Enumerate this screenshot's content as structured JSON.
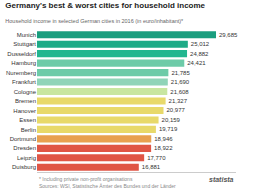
{
  "chart_data": {
    "type": "bar",
    "orientation": "horizontal",
    "title": "Germany's best & worst cities for household income",
    "subtitle": "Household income in selected German cities in 2016 (in euro/inhabitant)*",
    "annotations": [
      "* Including private non-profit organisations\nSources: WSI, Statistische Ämter des Bundes und der Länder",
      "statista"
    ],
    "categories": [
      "Munich",
      "Stuttgart",
      "Dusseldorf",
      "Hamburg",
      "Nuremberg",
      "Frankfurt",
      "Cologne",
      "Bremen",
      "Hanover",
      "Essen",
      "Berlin",
      "Dortmund",
      "Dresden",
      "Leipzig",
      "Duisburg"
    ],
    "values": [
      29685,
      25012,
      24882,
      24421,
      21785,
      21690,
      21608,
      21327,
      20977,
      20159,
      19719,
      18946,
      18922,
      17770,
      16881
    ],
    "value_labels": [
      "29,685",
      "25,012",
      "24,882",
      "24,421",
      "21,785",
      "21,690",
      "21,608",
      "21,327",
      "20,977",
      "20,159",
      "19,719",
      "18,946",
      "18,922",
      "17,770",
      "16,881"
    ],
    "colors": [
      "#1a9e7e",
      "#1eab87",
      "#21b68f",
      "#6dcba8",
      "#6dcba8",
      "#8fd4b8",
      "#c8e6a0",
      "#e8d96a",
      "#e8d96a",
      "#e8d96a",
      "#e8d96a",
      "#e8a050",
      "#e05545",
      "#e05545",
      "#e05545"
    ],
    "xlim": [
      0,
      33000
    ],
    "data_labels": true,
    "tick_labels": "y",
    "grid": false
  }
}
